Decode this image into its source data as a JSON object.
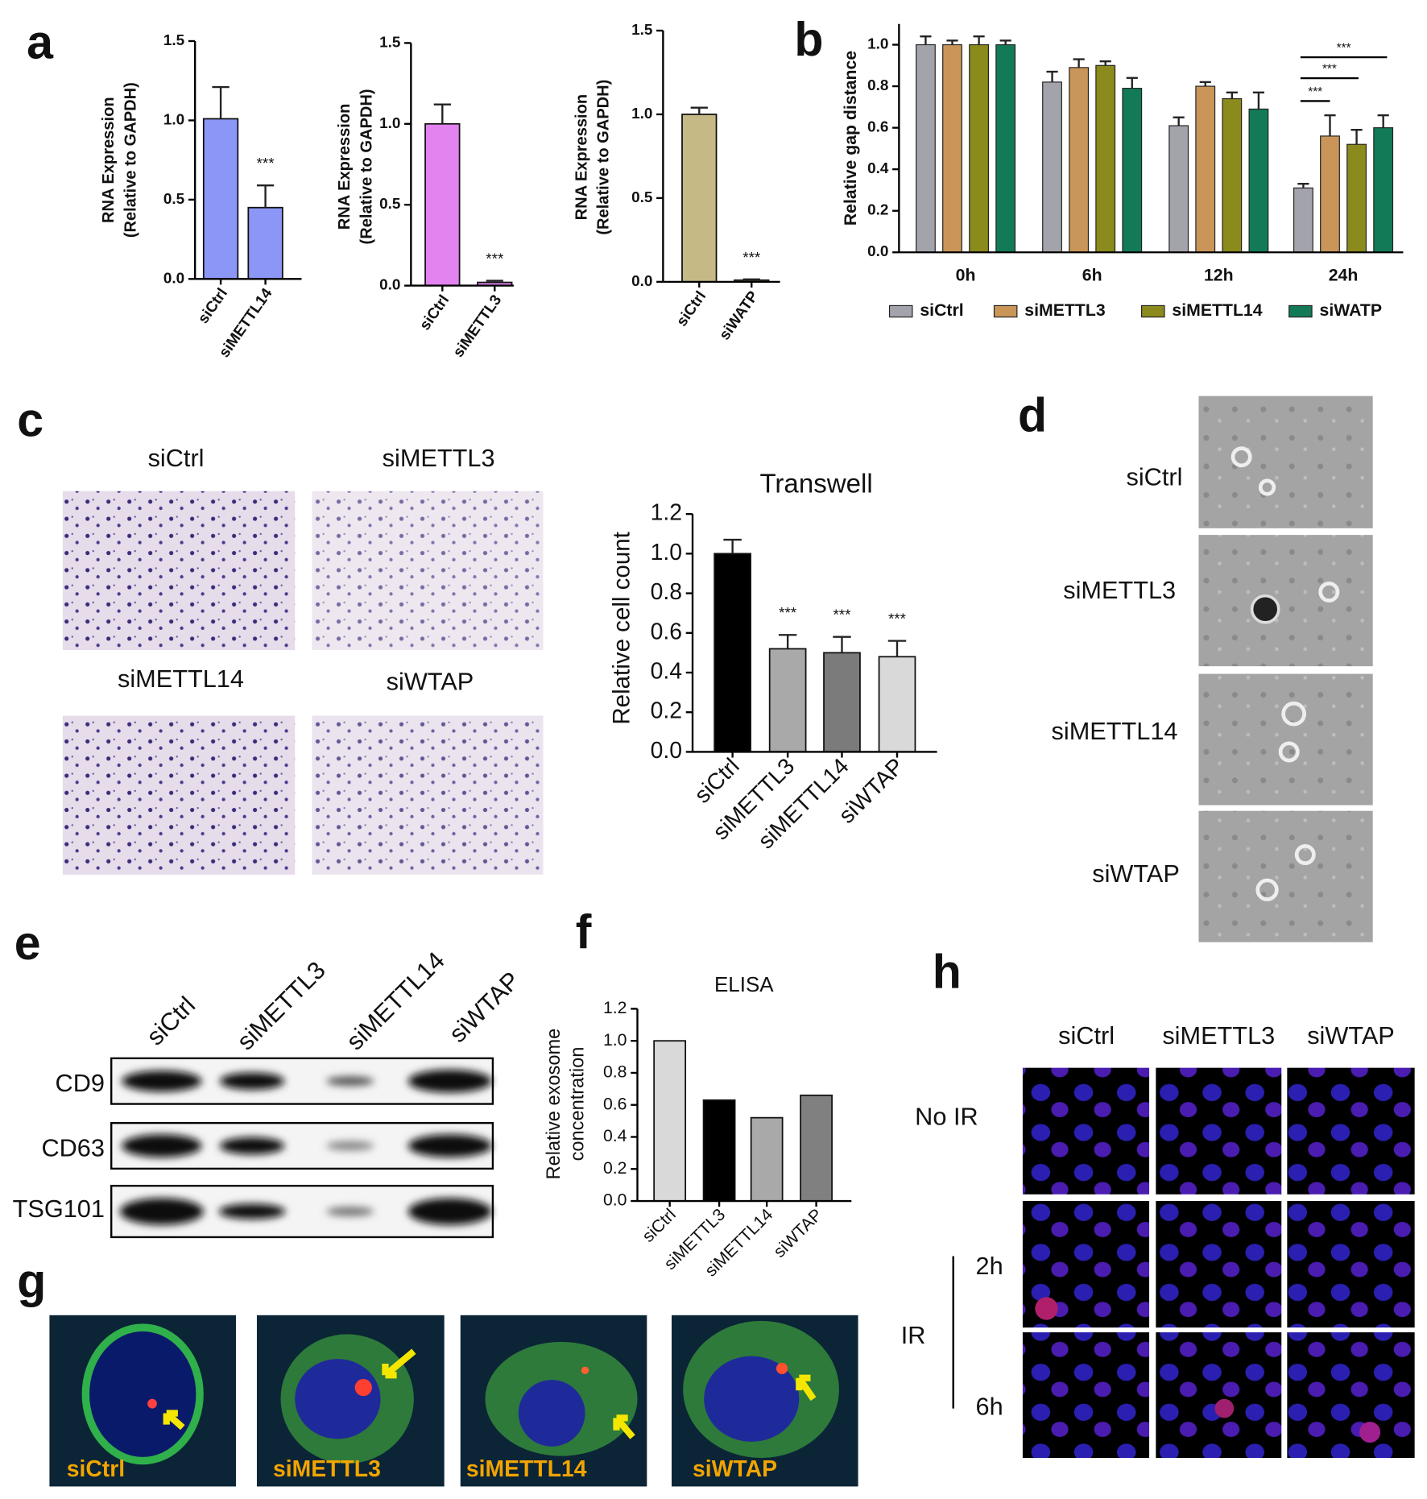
{
  "panel_labels": [
    "a",
    "b",
    "c",
    "d",
    "e",
    "f",
    "g",
    "h"
  ],
  "chart_data": [
    {
      "type": "bar",
      "y_label": [
        "RNA Expression",
        "(Relative to GAPDH)"
      ],
      "categories": [
        "siCtrl",
        "siMETTL14"
      ],
      "values": [
        1.01,
        0.45
      ],
      "errors": [
        0.2,
        0.14
      ],
      "color": "#8c96f6",
      "ylim": [
        0,
        1.5
      ],
      "yticks": [
        {
          "value": 0,
          "label": "0.0"
        },
        0.5,
        {
          "value": 1,
          "label": "1.0"
        },
        1.5
      ],
      "annotations": [
        "***"
      ]
    },
    {
      "type": "bar",
      "y_label": [
        "RNA Expression",
        "(Relative to GAPDH)"
      ],
      "categories": [
        "siCtrl",
        "siMETTL3"
      ],
      "values": [
        1.0,
        0.02
      ],
      "errors": [
        0.12,
        0.01
      ],
      "color": "#e283f0",
      "ylim": [
        0,
        1.5
      ],
      "yticks": [
        {
          "value": 0,
          "label": "0.0"
        },
        0.5,
        {
          "value": 1,
          "label": "1.0"
        },
        1.5
      ],
      "annotations": [
        "***"
      ]
    },
    {
      "type": "bar",
      "y_label": [
        "RNA Expression",
        "(Relative to GAPDH)"
      ],
      "categories": [
        "siCtrl",
        "siWATP"
      ],
      "values": [
        1.0,
        0.01
      ],
      "errors": [
        0.04,
        0.005
      ],
      "color": "#c5b985",
      "ylim": [
        0,
        1.5
      ],
      "yticks": [
        {
          "value": 0,
          "label": "0.0"
        },
        0.5,
        {
          "value": 1,
          "label": "1.0"
        },
        1.5
      ],
      "annotations": [
        "***"
      ]
    },
    {
      "type": "grouped-bar",
      "y_label": "Relative gap distance",
      "categories": [
        "0h",
        "6h",
        "12h",
        "24h"
      ],
      "series": [
        {
          "name": "siCtrl",
          "color": "#a3a3ab",
          "values": [
            1.0,
            0.82,
            0.61,
            0.31
          ],
          "errors": [
            0.04,
            0.05,
            0.04,
            0.02
          ]
        },
        {
          "name": "siMETTL3",
          "color": "#c99558",
          "values": [
            1.0,
            0.89,
            0.8,
            0.56
          ],
          "errors": [
            0.02,
            0.04,
            0.02,
            0.1
          ]
        },
        {
          "name": "siMETTL14",
          "color": "#8b8a1c",
          "values": [
            1.0,
            0.9,
            0.74,
            0.52
          ],
          "errors": [
            0.04,
            0.02,
            0.03,
            0.07
          ]
        },
        {
          "name": "siWATP",
          "color": "#127a56",
          "values": [
            1.0,
            0.79,
            0.69,
            0.6
          ],
          "errors": [
            0.02,
            0.05,
            0.08,
            0.06
          ]
        }
      ],
      "ylim": [
        0,
        1.1
      ],
      "yticks": [
        {
          "value": 0,
          "label": "0.0"
        },
        0.2,
        0.4,
        0.6,
        0.8,
        {
          "value": 1,
          "label": "1.0"
        }
      ],
      "annotations": [
        "***",
        "***",
        "***"
      ]
    },
    {
      "type": "bar",
      "title": "Transwell",
      "y_label": [
        "Relative cell count"
      ],
      "categories": [
        "siCtrl",
        "siMETTL3",
        "siMETTL14",
        "siWTAP"
      ],
      "values": [
        1.0,
        0.52,
        0.5,
        0.48
      ],
      "errors": [
        0.07,
        0.07,
        0.08,
        0.08
      ],
      "colors": [
        "#000000",
        "#a9a9a9",
        "#7b7b7b",
        "#d9d9d9"
      ],
      "ylim": [
        0,
        1.2
      ],
      "yticks": [
        {
          "value": 0,
          "label": "0.0"
        },
        0.2,
        0.4,
        0.6,
        0.8,
        {
          "value": 1,
          "label": "1.0"
        },
        1.2
      ],
      "annotations": [
        "***",
        "***",
        "***"
      ]
    },
    {
      "type": "bar",
      "title": "ELISA",
      "y_label": [
        "Relative exosome",
        "concentration"
      ],
      "categories": [
        "siCtrl",
        "siMETTL3",
        "siMETTL14",
        "siWTAP"
      ],
      "values": [
        1.0,
        0.63,
        0.52,
        0.66
      ],
      "colors": [
        "#d9d9d9",
        "#000000",
        "#a9a9a9",
        "#808080"
      ],
      "ylim": [
        0,
        1.2
      ],
      "yticks": [
        {
          "value": 0,
          "label": "0.0"
        },
        0.2,
        0.4,
        0.6,
        0.8,
        {
          "value": 1,
          "label": "1.0"
        },
        1.2
      ]
    }
  ],
  "image_panels": {
    "c": [
      "siCtrl",
      "siMETTL3",
      "siMETTL14",
      "siWTAP"
    ],
    "d": [
      "siCtrl",
      "siMETTL3",
      "siMETTL14",
      "siWTAP"
    ],
    "e": {
      "columns": [
        "siCtrl",
        "siMETTL3",
        "siMETTL14",
        "siWTAP"
      ],
      "rows": [
        "CD9",
        "CD63",
        "TSG101"
      ]
    },
    "g": [
      "siCtrl",
      "siMETTL3",
      "siMETTL14",
      "siWTAP"
    ],
    "h": {
      "columns": [
        "siCtrl",
        "siMETTL3",
        "siWTAP"
      ],
      "rows": [
        "No IR",
        "IR",
        "2h",
        "6h"
      ]
    }
  }
}
